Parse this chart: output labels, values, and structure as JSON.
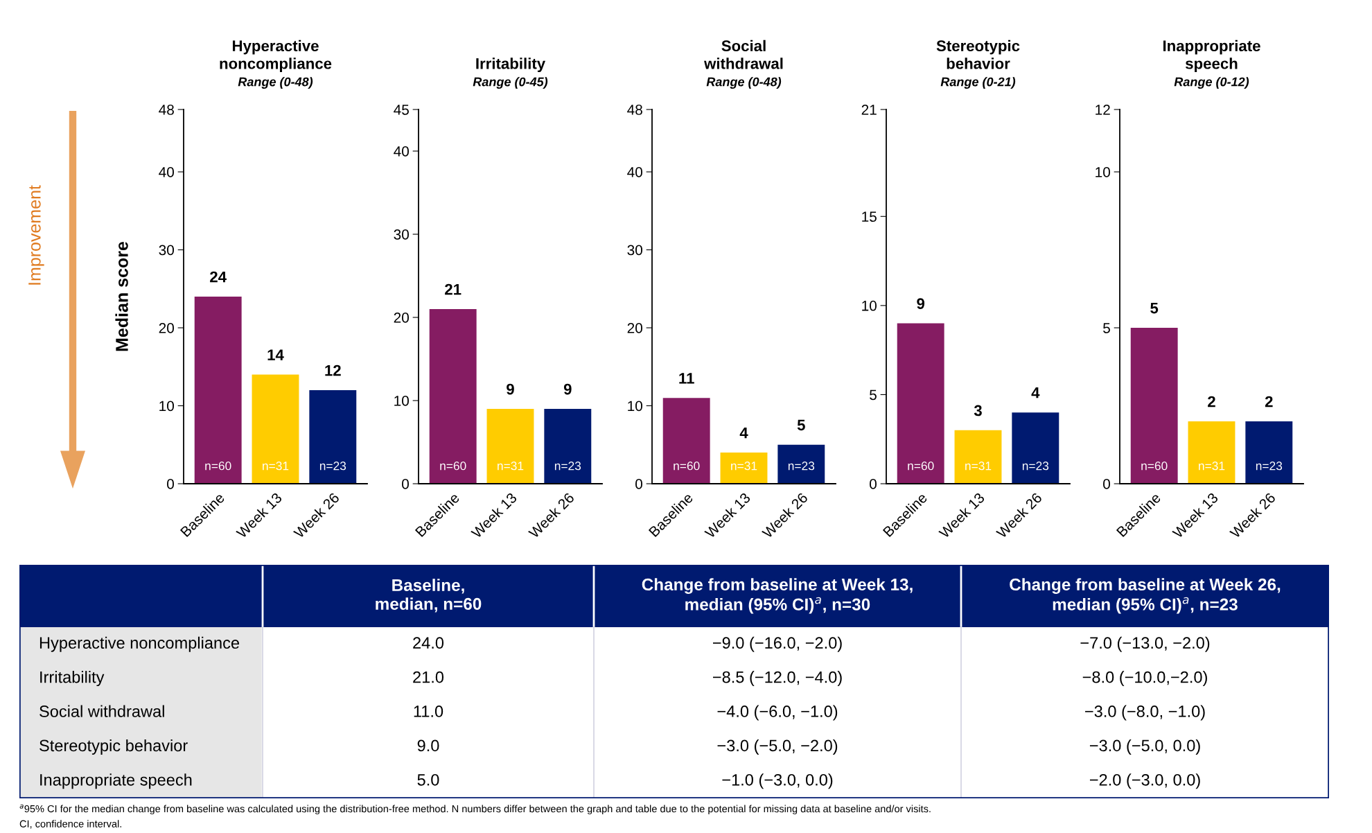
{
  "chart_data": [
    {
      "type": "bar",
      "title": "Hyperactive\nnoncompliance",
      "subtitle": "Range (0-48)",
      "ylabel": "Median score",
      "categories": [
        "Baseline",
        "Week 13",
        "Week 26"
      ],
      "values": [
        24,
        14,
        12
      ],
      "colors": [
        "#851c62",
        "#ffcc00",
        "#001a70"
      ],
      "ylim": [
        0,
        48
      ],
      "yticks": [
        0,
        10,
        20,
        30,
        40,
        48
      ],
      "data_labels": true,
      "grid": false,
      "legend": false,
      "annotations": [
        "Improvement",
        {
          "text": "n=60",
          "x": "Baseline",
          "y": 0
        },
        {
          "text": "n=31",
          "x": "Week 13",
          "y": 0
        },
        {
          "text": "n=23",
          "x": "Week 26",
          "y": 0
        }
      ]
    },
    {
      "type": "bar",
      "title": "Irritability",
      "subtitle": "Range (0-45)",
      "categories": [
        "Baseline",
        "Week 13",
        "Week 26"
      ],
      "values": [
        21,
        9,
        9
      ],
      "colors": [
        "#851c62",
        "#ffcc00",
        "#001a70"
      ],
      "ylim": [
        0,
        45
      ],
      "yticks": [
        0,
        10,
        20,
        30,
        40,
        45
      ],
      "data_labels": true,
      "grid": false,
      "legend": false,
      "annotations": [
        {
          "text": "n=60",
          "x": "Baseline",
          "y": 0
        },
        {
          "text": "n=31",
          "x": "Week 13",
          "y": 0
        },
        {
          "text": "n=23",
          "x": "Week 26",
          "y": 0
        }
      ]
    },
    {
      "type": "bar",
      "title": "Social\nwithdrawal",
      "subtitle": "Range (0-48)",
      "categories": [
        "Baseline",
        "Week 13",
        "Week 26"
      ],
      "values": [
        11,
        4,
        5
      ],
      "colors": [
        "#851c62",
        "#ffcc00",
        "#001a70"
      ],
      "ylim": [
        0,
        48
      ],
      "yticks": [
        0,
        10,
        20,
        30,
        40,
        48
      ],
      "data_labels": true,
      "grid": false,
      "legend": false,
      "annotations": [
        {
          "text": "n=60",
          "x": "Baseline",
          "y": 0
        },
        {
          "text": "n=31",
          "x": "Week 13",
          "y": 0
        },
        {
          "text": "n=23",
          "x": "Week 26",
          "y": 0
        }
      ]
    },
    {
      "type": "bar",
      "title": "Stereotypic\nbehavior",
      "subtitle": "Range (0-21)",
      "categories": [
        "Baseline",
        "Week 13",
        "Week 26"
      ],
      "values": [
        9,
        3,
        4
      ],
      "colors": [
        "#851c62",
        "#ffcc00",
        "#001a70"
      ],
      "ylim": [
        0,
        21
      ],
      "yticks": [
        0,
        5,
        10,
        15,
        21
      ],
      "data_labels": true,
      "grid": false,
      "legend": false,
      "annotations": [
        {
          "text": "n=60",
          "x": "Baseline",
          "y": 0
        },
        {
          "text": "n=31",
          "x": "Week 13",
          "y": 0
        },
        {
          "text": "n=23",
          "x": "Week 26",
          "y": 0
        }
      ]
    },
    {
      "type": "bar",
      "title": "Inappropriate\nspeech",
      "subtitle": "Range (0-12)",
      "categories": [
        "Baseline",
        "Week 13",
        "Week 26"
      ],
      "values": [
        5,
        2,
        2
      ],
      "colors": [
        "#851c62",
        "#ffcc00",
        "#001a70"
      ],
      "ylim": [
        0,
        12
      ],
      "yticks": [
        0,
        5,
        10,
        12
      ],
      "data_labels": true,
      "grid": false,
      "legend": false,
      "annotations": [
        {
          "text": "n=60",
          "x": "Baseline",
          "y": 0
        },
        {
          "text": "n=31",
          "x": "Week 13",
          "y": 0
        },
        {
          "text": "n=23",
          "x": "Week 26",
          "y": 0
        }
      ]
    },
    {
      "type": "other",
      "categories": [
        null,
        "Baseline,\nmedian, n=60",
        "Change from baseline at Week 13,\nmedian (95% CI)$^{a}$, n=30",
        "Change from baseline at Week 26,\nmedian (95% CI)$^{a}$, n=23"
      ],
      "y_categories": [
        "Hyperactive noncompliance",
        "Irritability",
        "Social withdrawal",
        "Stereotypic behavior",
        "Inappropriate speech"
      ],
      "cell_labels": [
        [
          "24.0",
          "−9.0 (−16.0, −2.0)",
          "−7.0 (−13.0, −2.0)"
        ],
        [
          "21.0",
          "−8.5 (−12.0, −4.0)",
          "−8.0 (−10.0,−2.0)"
        ],
        [
          "11.0",
          "−4.0 (−6.0, −1.0)",
          "−3.0 (−8.0, −1.0)"
        ],
        [
          "9.0",
          "−3.0 (−5.0, −2.0)",
          "−3.0 (−5.0, 0.0)"
        ],
        [
          "5.0",
          "−1.0 (−3.0, 0.0)",
          "−2.0 (−3.0, 0.0)"
        ]
      ],
      "annotations": [
        "$^{a}$95% CI for the median change from baseline was calculated using the distribution-free method. N numbers differ between the graph and table due to the potential for missing data at baseline and/or visits.",
        "CI, confidence interval."
      ]
    }
  ]
}
